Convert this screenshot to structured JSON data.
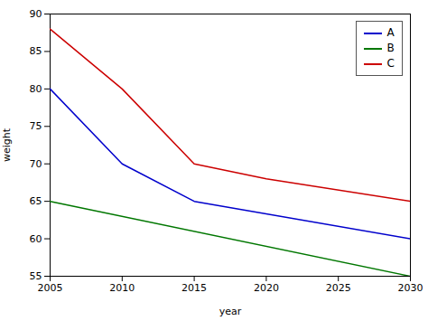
{
  "chart_data": {
    "type": "line",
    "xlabel": "year",
    "ylabel": "weight",
    "series": [
      {
        "name": "A",
        "color": "#0000cc",
        "x": [
          2005,
          2010,
          2015,
          2030
        ],
        "values": [
          80,
          70,
          65,
          60
        ]
      },
      {
        "name": "B",
        "color": "#007700",
        "x": [
          2005,
          2030
        ],
        "values": [
          65,
          55
        ]
      },
      {
        "name": "C",
        "color": "#cc0000",
        "x": [
          2005,
          2010,
          2015,
          2020,
          2030
        ],
        "values": [
          88,
          80,
          70,
          68,
          65
        ]
      }
    ],
    "xlim": [
      2005,
      2030
    ],
    "ylim": [
      55,
      90
    ],
    "xticks": [
      2005,
      2010,
      2015,
      2020,
      2025,
      2030
    ],
    "yticks": [
      55,
      60,
      65,
      70,
      75,
      80,
      85,
      90
    ],
    "legend": "upper right",
    "grid": false
  }
}
